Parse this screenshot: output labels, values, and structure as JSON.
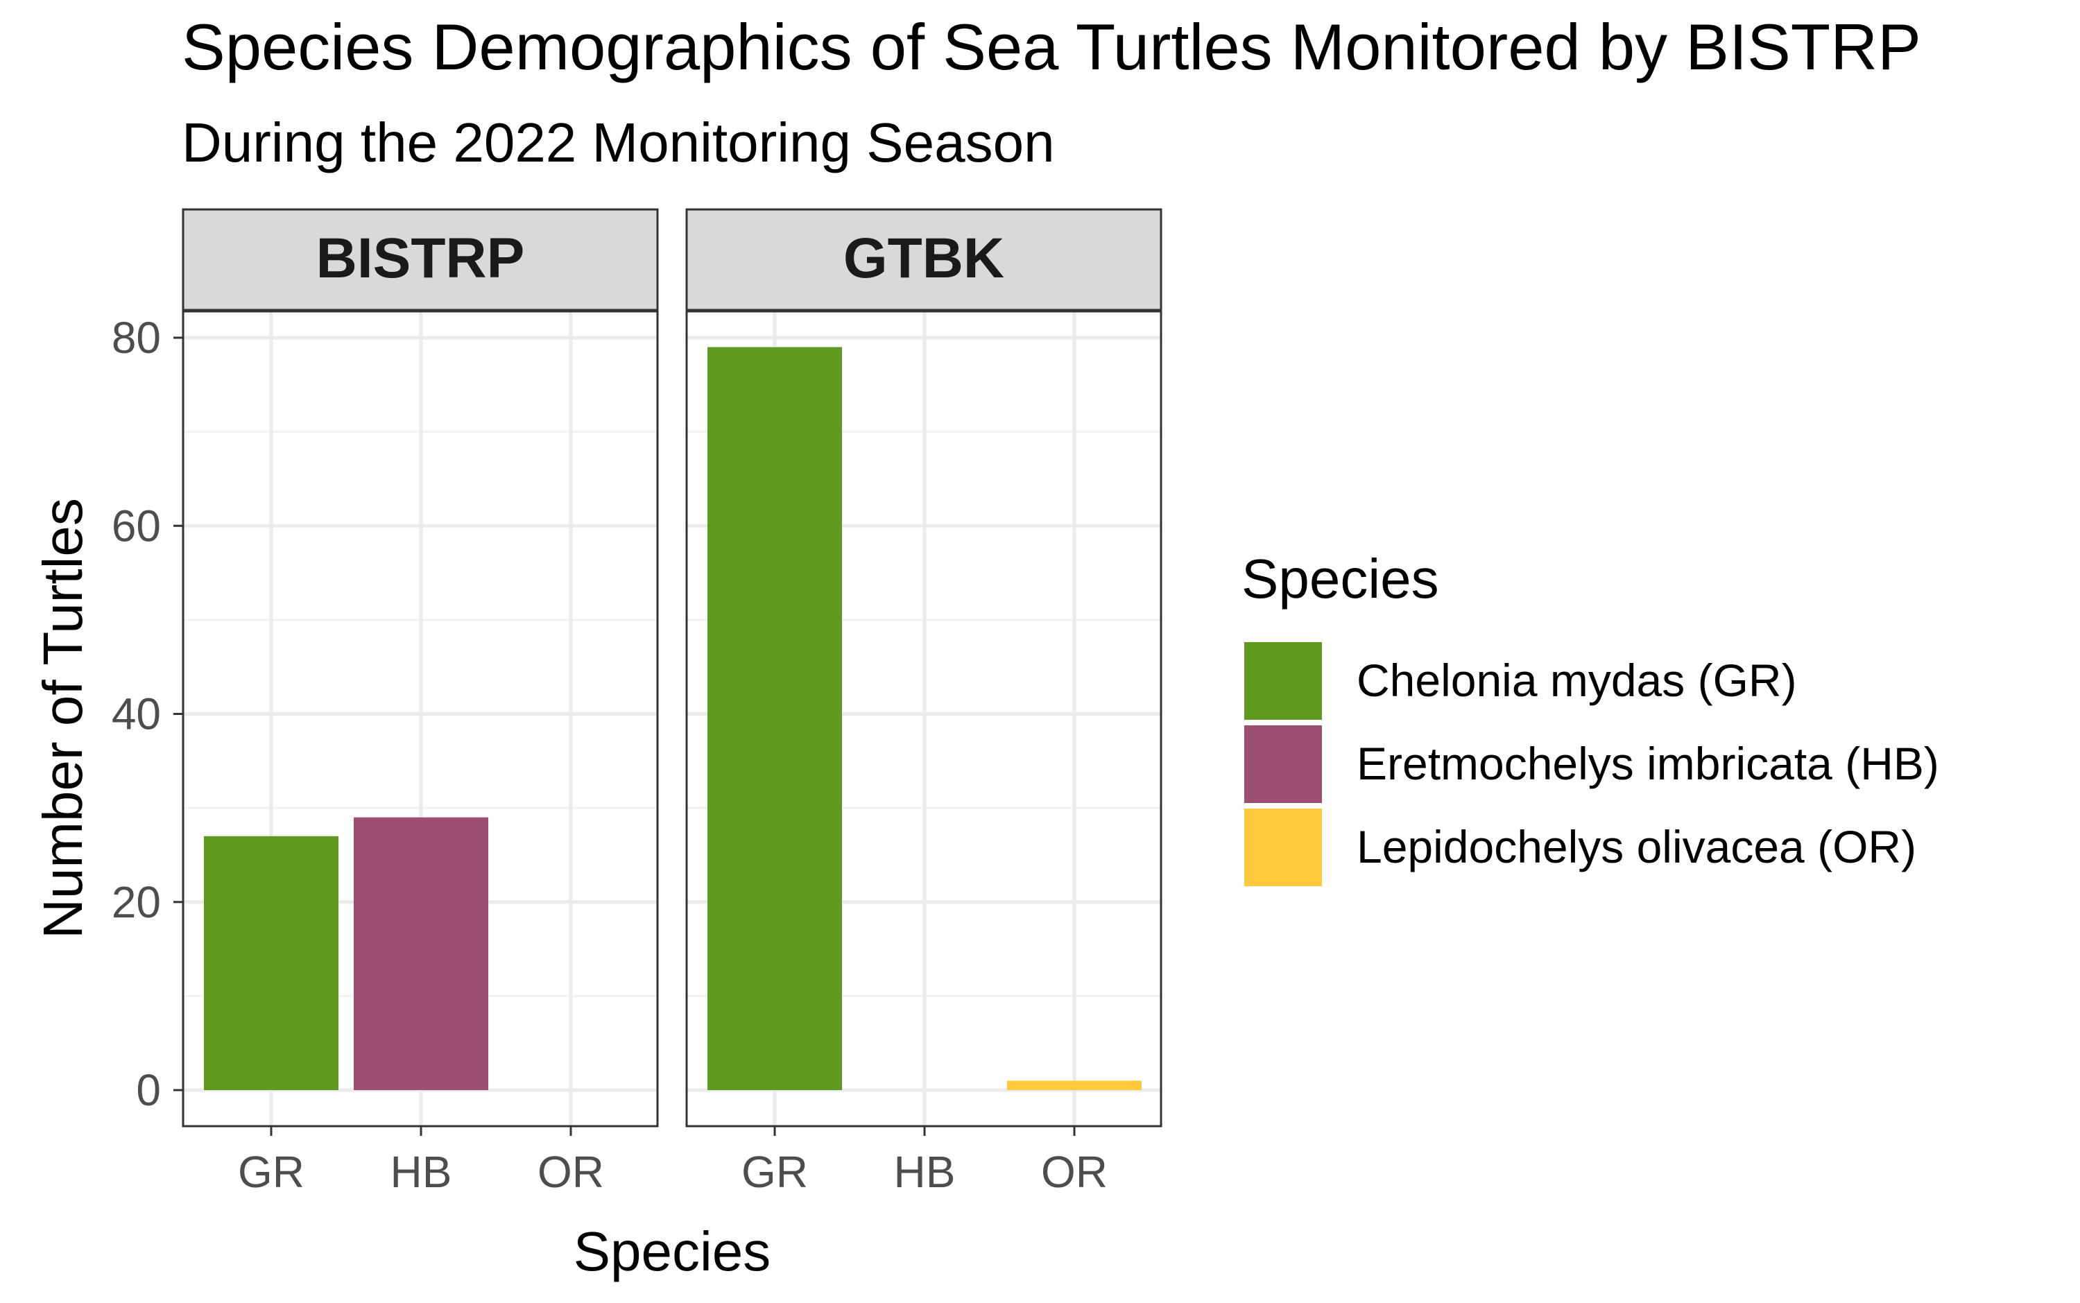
{
  "chart_data": {
    "type": "bar",
    "title": "Species Demographics of Sea Turtles Monitored by BISTRP",
    "subtitle": "During the 2022 Monitoring Season",
    "xlabel": "Species",
    "ylabel": "Number of Turtles",
    "categories": [
      "GR",
      "HB",
      "OR"
    ],
    "ylim": [
      0,
      80
    ],
    "yticks": [
      0,
      20,
      40,
      60,
      80
    ],
    "grid": true,
    "facets": [
      {
        "name": "BISTRP",
        "values": [
          27,
          29,
          0
        ]
      },
      {
        "name": "GTBK",
        "values": [
          79,
          0,
          1
        ]
      }
    ],
    "legend": {
      "title": "Species",
      "placement": "right",
      "entries": [
        {
          "label": "Chelonia mydas (GR)",
          "code": "GR",
          "color": "#5e9a1f"
        },
        {
          "label": "Eretmochelys imbricata (HB)",
          "code": "HB",
          "color": "#9b4f73"
        },
        {
          "label": "Lepidochelys olivacea (OR)",
          "code": "OR",
          "color": "#ffc93c"
        }
      ]
    }
  }
}
